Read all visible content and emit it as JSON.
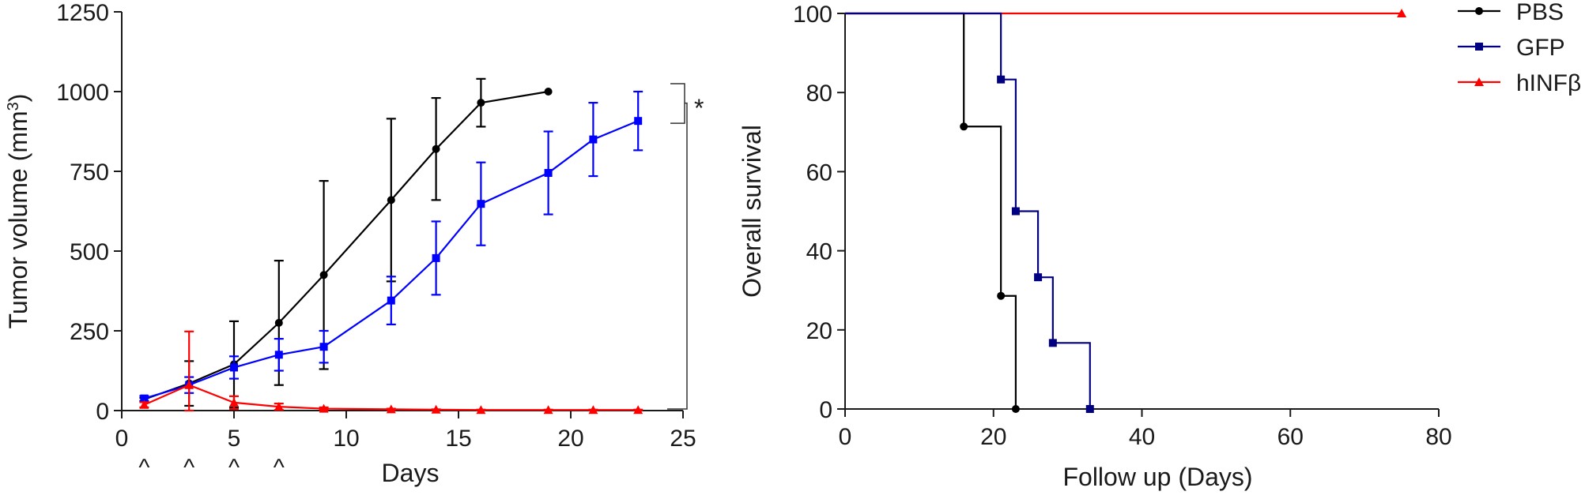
{
  "chart_data": [
    {
      "type": "line",
      "title": "",
      "xlabel": "Days",
      "ylabel": "Tumor volume (mm",
      "ylabel_superscript": "3",
      "ylabel_suffix": ")",
      "xlim": [
        0,
        25
      ],
      "ylim": [
        0,
        1250
      ],
      "xticks": [
        "0",
        "5",
        "10",
        "15",
        "20",
        "25"
      ],
      "yticks": [
        "0",
        "250",
        "500",
        "750",
        "1000",
        "1250"
      ],
      "grid": false,
      "treatment_days": [
        1,
        3,
        5,
        7
      ],
      "treatment_marker": "^",
      "significance_label": "*",
      "series": [
        {
          "name": "PBS",
          "color": "#000000",
          "marker": "circle",
          "x": [
            1,
            3,
            5,
            7,
            9,
            12,
            14,
            16,
            19
          ],
          "y": [
            35,
            85,
            145,
            275,
            425,
            660,
            820,
            965,
            1000
          ],
          "err": [
            5,
            70,
            135,
            195,
            295,
            255,
            160,
            75,
            0
          ]
        },
        {
          "name": "GFP",
          "color": "#0000ff",
          "marker": "square",
          "x": [
            1,
            3,
            5,
            7,
            9,
            12,
            14,
            16,
            19,
            21,
            23
          ],
          "y": [
            38,
            80,
            135,
            175,
            200,
            345,
            478,
            648,
            745,
            850,
            908
          ],
          "err": [
            8,
            25,
            35,
            50,
            50,
            75,
            115,
            130,
            130,
            115,
            92
          ]
        },
        {
          "name": "hINFβ",
          "color": "#ff0000",
          "marker": "triangle",
          "x": [
            1,
            3,
            5,
            7,
            9,
            12,
            14,
            16,
            19,
            21,
            23
          ],
          "y": [
            18,
            80,
            25,
            12,
            6,
            4,
            3,
            2,
            2,
            2,
            2
          ],
          "err": [
            8,
            168,
            20,
            10,
            4,
            2,
            1,
            1,
            1,
            1,
            1
          ]
        }
      ]
    },
    {
      "type": "line",
      "subtype": "step",
      "title": "",
      "xlabel": "Follow up (Days)",
      "ylabel": "Overall survival",
      "xlim": [
        0,
        80
      ],
      "ylim": [
        0,
        100
      ],
      "xticks": [
        "0",
        "20",
        "40",
        "60",
        "80"
      ],
      "yticks": [
        "0",
        "20",
        "40",
        "60",
        "80",
        "100"
      ],
      "grid": false,
      "legend_position": "top-right",
      "series": [
        {
          "name": "PBS",
          "color": "#000000",
          "marker": "circle",
          "x": [
            0,
            16,
            21,
            23
          ],
          "y": [
            100,
            71.4,
            28.6,
            0
          ]
        },
        {
          "name": "GFP",
          "color": "#000080",
          "marker": "square",
          "x": [
            0,
            21,
            23,
            26,
            28,
            33
          ],
          "y": [
            100,
            83.3,
            50,
            33.3,
            16.7,
            0
          ]
        },
        {
          "name": "hINFβ",
          "color": "#ff0000",
          "marker": "triangle",
          "x": [
            0,
            75
          ],
          "y": [
            100,
            100
          ]
        }
      ]
    }
  ]
}
